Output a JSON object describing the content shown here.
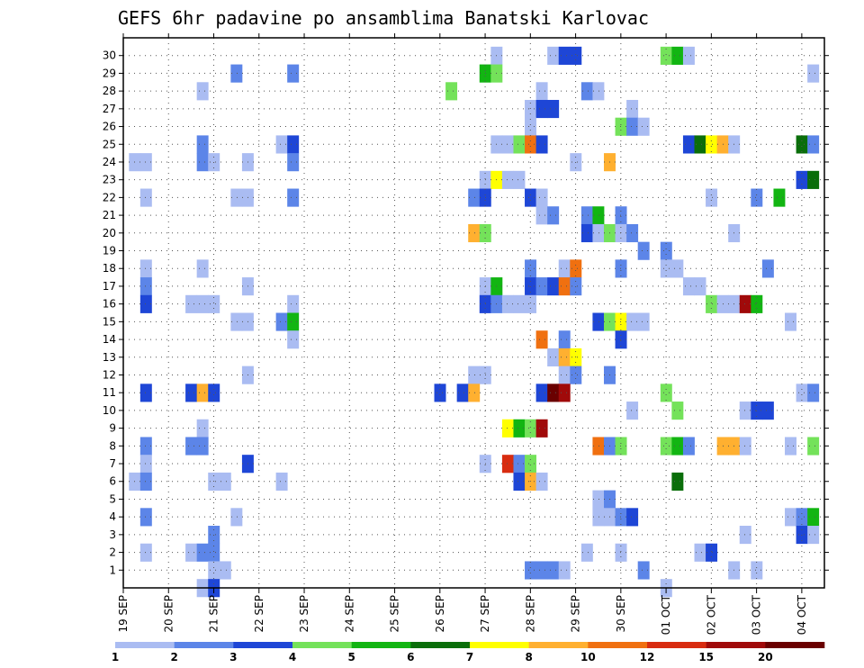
{
  "chart_data": {
    "type": "heatmap",
    "title": "GEFS 6hr padavine po ansamblima Banatski Karlovac",
    "xlabel": "",
    "ylabel": "",
    "x_ticks": [
      "19 SEP",
      "20 SEP",
      "21 SEP",
      "22 SEP",
      "23 SEP",
      "24 SEP",
      "25 SEP",
      "26 SEP",
      "27 SEP",
      "28 SEP",
      "29 SEP",
      "30 SEP",
      "01 OCT",
      "02 OCT",
      "03 OCT",
      "04 OCT"
    ],
    "xlim_steps": [
      0,
      62
    ],
    "y_ticks": [
      1,
      2,
      3,
      4,
      5,
      6,
      7,
      8,
      9,
      10,
      11,
      12,
      13,
      14,
      15,
      16,
      17,
      18,
      19,
      20,
      21,
      22,
      23,
      24,
      25,
      26,
      27,
      28,
      29,
      30
    ],
    "ylim": [
      0,
      30
    ],
    "grid": true,
    "legend": "bottom",
    "colorbar": {
      "labels": [
        "1",
        "2",
        "3",
        "4",
        "5",
        "6",
        "7",
        "8",
        "10",
        "12",
        "15",
        "20"
      ],
      "colors": [
        "#aabcf2",
        "#5c85e8",
        "#1e46d6",
        "#74e25a",
        "#12b512",
        "#0a6e0a",
        "#ffff00",
        "#ffb030",
        "#f07010",
        "#d82c10",
        "#a00a0a",
        "#6a0000"
      ]
    },
    "cells": [
      {
        "m": 30,
        "t": 33,
        "c": 0
      },
      {
        "m": 30,
        "t": 38,
        "c": 0
      },
      {
        "m": 30,
        "t": 39,
        "c": 2
      },
      {
        "m": 30,
        "t": 40,
        "c": 2
      },
      {
        "m": 30,
        "t": 48,
        "c": 3
      },
      {
        "m": 30,
        "t": 49,
        "c": 4
      },
      {
        "m": 30,
        "t": 50,
        "c": 0
      },
      {
        "m": 29,
        "t": 10,
        "c": 1
      },
      {
        "m": 29,
        "t": 15,
        "c": 1
      },
      {
        "m": 29,
        "t": 32,
        "c": 4
      },
      {
        "m": 29,
        "t": 33,
        "c": 3
      },
      {
        "m": 29,
        "t": 61,
        "c": 0
      },
      {
        "m": 28,
        "t": 7,
        "c": 0
      },
      {
        "m": 28,
        "t": 29,
        "c": 3
      },
      {
        "m": 28,
        "t": 37,
        "c": 0
      },
      {
        "m": 28,
        "t": 41,
        "c": 1
      },
      {
        "m": 28,
        "t": 42,
        "c": 0
      },
      {
        "m": 27,
        "t": 36,
        "c": 0
      },
      {
        "m": 27,
        "t": 37,
        "c": 2
      },
      {
        "m": 27,
        "t": 38,
        "c": 2
      },
      {
        "m": 27,
        "t": 45,
        "c": 0
      },
      {
        "m": 26,
        "t": 36,
        "c": 0
      },
      {
        "m": 26,
        "t": 44,
        "c": 3
      },
      {
        "m": 26,
        "t": 45,
        "c": 1
      },
      {
        "m": 26,
        "t": 46,
        "c": 0
      },
      {
        "m": 25,
        "t": 7,
        "c": 1
      },
      {
        "m": 25,
        "t": 14,
        "c": 0
      },
      {
        "m": 25,
        "t": 15,
        "c": 2
      },
      {
        "m": 25,
        "t": 33,
        "c": 0
      },
      {
        "m": 25,
        "t": 34,
        "c": 0
      },
      {
        "m": 25,
        "t": 35,
        "c": 3
      },
      {
        "m": 25,
        "t": 36,
        "c": 8
      },
      {
        "m": 25,
        "t": 37,
        "c": 2
      },
      {
        "m": 25,
        "t": 50,
        "c": 2
      },
      {
        "m": 25,
        "t": 51,
        "c": 5
      },
      {
        "m": 25,
        "t": 52,
        "c": 6
      },
      {
        "m": 25,
        "t": 53,
        "c": 7
      },
      {
        "m": 25,
        "t": 54,
        "c": 0
      },
      {
        "m": 25,
        "t": 60,
        "c": 5
      },
      {
        "m": 25,
        "t": 61,
        "c": 1
      },
      {
        "m": 24,
        "t": 1,
        "c": 0
      },
      {
        "m": 24,
        "t": 2,
        "c": 0
      },
      {
        "m": 24,
        "t": 7,
        "c": 1
      },
      {
        "m": 24,
        "t": 8,
        "c": 0
      },
      {
        "m": 24,
        "t": 11,
        "c": 0
      },
      {
        "m": 24,
        "t": 15,
        "c": 1
      },
      {
        "m": 24,
        "t": 40,
        "c": 0
      },
      {
        "m": 24,
        "t": 43,
        "c": 7
      },
      {
        "m": 23,
        "t": 32,
        "c": 0
      },
      {
        "m": 23,
        "t": 33,
        "c": 6
      },
      {
        "m": 23,
        "t": 34,
        "c": 0
      },
      {
        "m": 23,
        "t": 35,
        "c": 0
      },
      {
        "m": 23,
        "t": 60,
        "c": 2
      },
      {
        "m": 23,
        "t": 61,
        "c": 5
      },
      {
        "m": 22,
        "t": 2,
        "c": 0
      },
      {
        "m": 22,
        "t": 10,
        "c": 0
      },
      {
        "m": 22,
        "t": 11,
        "c": 0
      },
      {
        "m": 22,
        "t": 15,
        "c": 1
      },
      {
        "m": 22,
        "t": 31,
        "c": 1
      },
      {
        "m": 22,
        "t": 32,
        "c": 2
      },
      {
        "m": 22,
        "t": 36,
        "c": 2
      },
      {
        "m": 22,
        "t": 37,
        "c": 0
      },
      {
        "m": 22,
        "t": 52,
        "c": 0
      },
      {
        "m": 22,
        "t": 56,
        "c": 1
      },
      {
        "m": 22,
        "t": 58,
        "c": 4
      },
      {
        "m": 21,
        "t": 37,
        "c": 0
      },
      {
        "m": 21,
        "t": 38,
        "c": 1
      },
      {
        "m": 21,
        "t": 41,
        "c": 1
      },
      {
        "m": 21,
        "t": 42,
        "c": 4
      },
      {
        "m": 21,
        "t": 44,
        "c": 1
      },
      {
        "m": 20,
        "t": 31,
        "c": 7
      },
      {
        "m": 20,
        "t": 32,
        "c": 3
      },
      {
        "m": 20,
        "t": 41,
        "c": 2
      },
      {
        "m": 20,
        "t": 42,
        "c": 0
      },
      {
        "m": 20,
        "t": 43,
        "c": 3
      },
      {
        "m": 20,
        "t": 44,
        "c": 0
      },
      {
        "m": 20,
        "t": 45,
        "c": 1
      },
      {
        "m": 20,
        "t": 54,
        "c": 0
      },
      {
        "m": 19,
        "t": 46,
        "c": 1
      },
      {
        "m": 19,
        "t": 48,
        "c": 1
      },
      {
        "m": 18,
        "t": 2,
        "c": 0
      },
      {
        "m": 18,
        "t": 7,
        "c": 0
      },
      {
        "m": 18,
        "t": 36,
        "c": 1
      },
      {
        "m": 18,
        "t": 39,
        "c": 0
      },
      {
        "m": 18,
        "t": 40,
        "c": 8
      },
      {
        "m": 18,
        "t": 44,
        "c": 1
      },
      {
        "m": 18,
        "t": 48,
        "c": 0
      },
      {
        "m": 18,
        "t": 49,
        "c": 0
      },
      {
        "m": 18,
        "t": 57,
        "c": 1
      },
      {
        "m": 17,
        "t": 2,
        "c": 1
      },
      {
        "m": 17,
        "t": 11,
        "c": 0
      },
      {
        "m": 17,
        "t": 32,
        "c": 0
      },
      {
        "m": 17,
        "t": 33,
        "c": 4
      },
      {
        "m": 17,
        "t": 36,
        "c": 2
      },
      {
        "m": 17,
        "t": 37,
        "c": 1
      },
      {
        "m": 17,
        "t": 38,
        "c": 2
      },
      {
        "m": 17,
        "t": 39,
        "c": 8
      },
      {
        "m": 17,
        "t": 40,
        "c": 1
      },
      {
        "m": 17,
        "t": 50,
        "c": 0
      },
      {
        "m": 17,
        "t": 51,
        "c": 0
      },
      {
        "m": 16,
        "t": 2,
        "c": 2
      },
      {
        "m": 16,
        "t": 6,
        "c": 0
      },
      {
        "m": 16,
        "t": 7,
        "c": 0
      },
      {
        "m": 16,
        "t": 8,
        "c": 0
      },
      {
        "m": 16,
        "t": 15,
        "c": 0
      },
      {
        "m": 16,
        "t": 32,
        "c": 2
      },
      {
        "m": 16,
        "t": 33,
        "c": 1
      },
      {
        "m": 16,
        "t": 34,
        "c": 0
      },
      {
        "m": 16,
        "t": 35,
        "c": 0
      },
      {
        "m": 16,
        "t": 36,
        "c": 0
      },
      {
        "m": 16,
        "t": 52,
        "c": 3
      },
      {
        "m": 16,
        "t": 53,
        "c": 0
      },
      {
        "m": 16,
        "t": 54,
        "c": 0
      },
      {
        "m": 16,
        "t": 55,
        "c": 10
      },
      {
        "m": 16,
        "t": 56,
        "c": 4
      },
      {
        "m": 15,
        "t": 10,
        "c": 0
      },
      {
        "m": 15,
        "t": 11,
        "c": 0
      },
      {
        "m": 15,
        "t": 14,
        "c": 1
      },
      {
        "m": 15,
        "t": 15,
        "c": 4
      },
      {
        "m": 15,
        "t": 42,
        "c": 2
      },
      {
        "m": 15,
        "t": 43,
        "c": 3
      },
      {
        "m": 15,
        "t": 44,
        "c": 6
      },
      {
        "m": 15,
        "t": 45,
        "c": 0
      },
      {
        "m": 15,
        "t": 46,
        "c": 0
      },
      {
        "m": 15,
        "t": 59,
        "c": 0
      },
      {
        "m": 14,
        "t": 15,
        "c": 0
      },
      {
        "m": 14,
        "t": 37,
        "c": 8
      },
      {
        "m": 14,
        "t": 39,
        "c": 1
      },
      {
        "m": 14,
        "t": 44,
        "c": 2
      },
      {
        "m": 13,
        "t": 38,
        "c": 0
      },
      {
        "m": 13,
        "t": 39,
        "c": 7
      },
      {
        "m": 13,
        "t": 40,
        "c": 6
      },
      {
        "m": 12,
        "t": 11,
        "c": 0
      },
      {
        "m": 12,
        "t": 31,
        "c": 0
      },
      {
        "m": 12,
        "t": 32,
        "c": 0
      },
      {
        "m": 12,
        "t": 39,
        "c": 0
      },
      {
        "m": 12,
        "t": 40,
        "c": 1
      },
      {
        "m": 12,
        "t": 43,
        "c": 1
      },
      {
        "m": 11,
        "t": 2,
        "c": 2
      },
      {
        "m": 11,
        "t": 6,
        "c": 2
      },
      {
        "m": 11,
        "t": 7,
        "c": 7
      },
      {
        "m": 11,
        "t": 8,
        "c": 2
      },
      {
        "m": 11,
        "t": 28,
        "c": 2
      },
      {
        "m": 11,
        "t": 30,
        "c": 2
      },
      {
        "m": 11,
        "t": 31,
        "c": 7
      },
      {
        "m": 11,
        "t": 37,
        "c": 2
      },
      {
        "m": 11,
        "t": 38,
        "c": 11
      },
      {
        "m": 11,
        "t": 39,
        "c": 10
      },
      {
        "m": 11,
        "t": 48,
        "c": 3
      },
      {
        "m": 11,
        "t": 60,
        "c": 0
      },
      {
        "m": 11,
        "t": 61,
        "c": 1
      },
      {
        "m": 10,
        "t": 45,
        "c": 0
      },
      {
        "m": 10,
        "t": 49,
        "c": 3
      },
      {
        "m": 10,
        "t": 55,
        "c": 0
      },
      {
        "m": 10,
        "t": 56,
        "c": 2
      },
      {
        "m": 10,
        "t": 57,
        "c": 2
      },
      {
        "m": 9,
        "t": 7,
        "c": 0
      },
      {
        "m": 9,
        "t": 34,
        "c": 6
      },
      {
        "m": 9,
        "t": 35,
        "c": 4
      },
      {
        "m": 9,
        "t": 36,
        "c": 3
      },
      {
        "m": 9,
        "t": 37,
        "c": 10
      },
      {
        "m": 8,
        "t": 2,
        "c": 1
      },
      {
        "m": 8,
        "t": 6,
        "c": 1
      },
      {
        "m": 8,
        "t": 7,
        "c": 1
      },
      {
        "m": 8,
        "t": 42,
        "c": 8
      },
      {
        "m": 8,
        "t": 43,
        "c": 1
      },
      {
        "m": 8,
        "t": 44,
        "c": 3
      },
      {
        "m": 8,
        "t": 48,
        "c": 3
      },
      {
        "m": 8,
        "t": 49,
        "c": 4
      },
      {
        "m": 8,
        "t": 50,
        "c": 1
      },
      {
        "m": 8,
        "t": 53,
        "c": 7
      },
      {
        "m": 8,
        "t": 54,
        "c": 7
      },
      {
        "m": 8,
        "t": 55,
        "c": 0
      },
      {
        "m": 8,
        "t": 59,
        "c": 0
      },
      {
        "m": 8,
        "t": 61,
        "c": 3
      },
      {
        "m": 7,
        "t": 2,
        "c": 0
      },
      {
        "m": 7,
        "t": 11,
        "c": 2
      },
      {
        "m": 7,
        "t": 32,
        "c": 0
      },
      {
        "m": 7,
        "t": 34,
        "c": 9
      },
      {
        "m": 7,
        "t": 35,
        "c": 1
      },
      {
        "m": 7,
        "t": 36,
        "c": 3
      },
      {
        "m": 6,
        "t": 1,
        "c": 0
      },
      {
        "m": 6,
        "t": 2,
        "c": 1
      },
      {
        "m": 6,
        "t": 8,
        "c": 0
      },
      {
        "m": 6,
        "t": 9,
        "c": 0
      },
      {
        "m": 6,
        "t": 14,
        "c": 0
      },
      {
        "m": 6,
        "t": 35,
        "c": 2
      },
      {
        "m": 6,
        "t": 36,
        "c": 7
      },
      {
        "m": 6,
        "t": 37,
        "c": 0
      },
      {
        "m": 6,
        "t": 49,
        "c": 5
      },
      {
        "m": 5,
        "t": 42,
        "c": 0
      },
      {
        "m": 5,
        "t": 43,
        "c": 1
      },
      {
        "m": 4,
        "t": 2,
        "c": 1
      },
      {
        "m": 4,
        "t": 10,
        "c": 0
      },
      {
        "m": 4,
        "t": 42,
        "c": 0
      },
      {
        "m": 4,
        "t": 43,
        "c": 0
      },
      {
        "m": 4,
        "t": 44,
        "c": 1
      },
      {
        "m": 4,
        "t": 45,
        "c": 2
      },
      {
        "m": 4,
        "t": 59,
        "c": 0
      },
      {
        "m": 4,
        "t": 60,
        "c": 1
      },
      {
        "m": 4,
        "t": 61,
        "c": 4
      },
      {
        "m": 3,
        "t": 8,
        "c": 1
      },
      {
        "m": 3,
        "t": 55,
        "c": 0
      },
      {
        "m": 3,
        "t": 60,
        "c": 2
      },
      {
        "m": 3,
        "t": 61,
        "c": 0
      },
      {
        "m": 2,
        "t": 2,
        "c": 0
      },
      {
        "m": 2,
        "t": 6,
        "c": 0
      },
      {
        "m": 2,
        "t": 7,
        "c": 1
      },
      {
        "m": 2,
        "t": 8,
        "c": 1
      },
      {
        "m": 2,
        "t": 41,
        "c": 0
      },
      {
        "m": 2,
        "t": 44,
        "c": 0
      },
      {
        "m": 2,
        "t": 51,
        "c": 0
      },
      {
        "m": 2,
        "t": 52,
        "c": 2
      },
      {
        "m": 1,
        "t": 8,
        "c": 0
      },
      {
        "m": 1,
        "t": 9,
        "c": 0
      },
      {
        "m": 1,
        "t": 36,
        "c": 1
      },
      {
        "m": 1,
        "t": 37,
        "c": 1
      },
      {
        "m": 1,
        "t": 38,
        "c": 1
      },
      {
        "m": 1,
        "t": 39,
        "c": 0
      },
      {
        "m": 1,
        "t": 46,
        "c": 1
      },
      {
        "m": 1,
        "t": 54,
        "c": 0
      },
      {
        "m": 1,
        "t": 56,
        "c": 0
      },
      {
        "m": 0,
        "t": 7,
        "c": 0
      },
      {
        "m": 0,
        "t": 8,
        "c": 2
      },
      {
        "m": 0,
        "t": 48,
        "c": 0
      }
    ]
  }
}
